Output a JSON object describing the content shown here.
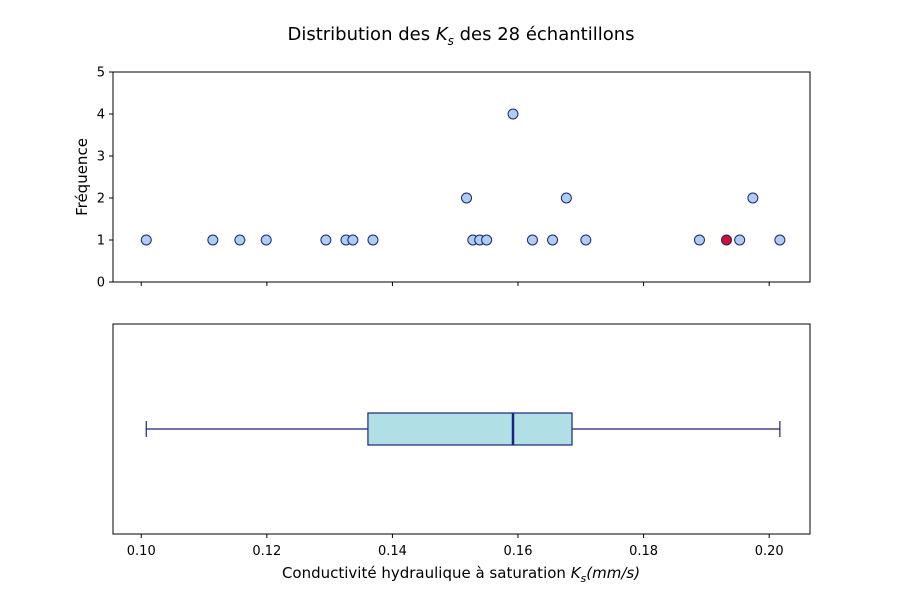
{
  "chart_data": {
    "type": "scatter",
    "title_prefix": "Distribution des ",
    "title_var": "K",
    "title_sub": "s",
    "title_suffix": " des 28 échantillons",
    "xlabel_prefix": "Conductivité hydraulique à saturation ",
    "xlabel_var": "K",
    "xlabel_sub": "s",
    "xlabel_units": "(mm/s)",
    "ylabel": "Fréquence",
    "xlim": [
      0.0955,
      0.2065
    ],
    "ylim": [
      0,
      5
    ],
    "xticks": [
      "0.10",
      "0.12",
      "0.14",
      "0.16",
      "0.18",
      "0.20"
    ],
    "yticks": [
      "0",
      "1",
      "2",
      "3",
      "4",
      "5"
    ],
    "grid": false,
    "point_color": "#aecdf0",
    "point_edge": "#1a237e",
    "highlight_color": "#d0102e",
    "frequency_points": [
      {
        "x": 0.1008,
        "y": 1
      },
      {
        "x": 0.1114,
        "y": 1
      },
      {
        "x": 0.1157,
        "y": 1
      },
      {
        "x": 0.1199,
        "y": 1
      },
      {
        "x": 0.1294,
        "y": 1
      },
      {
        "x": 0.1326,
        "y": 1
      },
      {
        "x": 0.1337,
        "y": 1
      },
      {
        "x": 0.1369,
        "y": 1
      },
      {
        "x": 0.1518,
        "y": 2
      },
      {
        "x": 0.1528,
        "y": 1
      },
      {
        "x": 0.1539,
        "y": 1
      },
      {
        "x": 0.155,
        "y": 1
      },
      {
        "x": 0.1592,
        "y": 4
      },
      {
        "x": 0.1623,
        "y": 1
      },
      {
        "x": 0.1655,
        "y": 1
      },
      {
        "x": 0.1677,
        "y": 2
      },
      {
        "x": 0.1708,
        "y": 1
      },
      {
        "x": 0.1889,
        "y": 1
      },
      {
        "x": 0.1932,
        "y": 1,
        "highlight": true
      },
      {
        "x": 0.1953,
        "y": 1
      },
      {
        "x": 0.1974,
        "y": 2
      },
      {
        "x": 0.2017,
        "y": 1
      }
    ],
    "boxplot": {
      "whisker_low": 0.1008,
      "q1": 0.1361,
      "median": 0.1592,
      "q3": 0.1686,
      "whisker_high": 0.2017,
      "box_color": "#b0e0e6",
      "line_color": "#1a237e"
    }
  }
}
